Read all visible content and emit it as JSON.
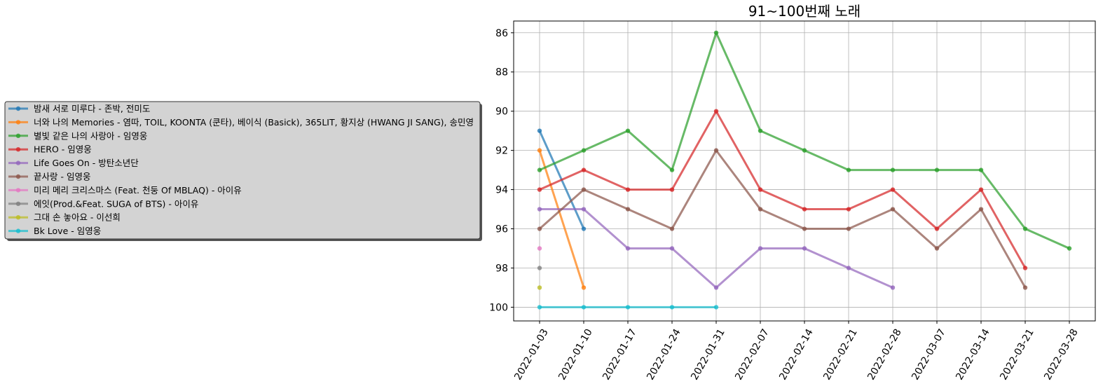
{
  "chart_data": {
    "type": "line",
    "title": "91~100번째 노래",
    "xlabel": "",
    "ylabel": "",
    "x": [
      "2022-01-03",
      "2022-01-10",
      "2022-01-17",
      "2022-01-24",
      "2022-01-31",
      "2022-02-07",
      "2022-02-14",
      "2022-02-21",
      "2022-02-28",
      "2022-03-07",
      "2022-03-14",
      "2022-03-21",
      "2022-03-28"
    ],
    "ylim": [
      100.7,
      85.4
    ],
    "y_inverted": true,
    "yticks": [
      86,
      88,
      90,
      92,
      94,
      96,
      98,
      100
    ],
    "grid": true,
    "legend_position": "left, outside plot",
    "series": [
      {
        "name": "밤새 서로 미루다 - 존박, 전미도",
        "color": "#1f77b4",
        "values": [
          91,
          96,
          null,
          null,
          null,
          null,
          null,
          null,
          null,
          null,
          null,
          null,
          null
        ]
      },
      {
        "name": "너와 나의 Memories - 염따, TOIL, KOONTA (쿤타), 베이식 (Basick), 365LIT, 황지상 (HWANG JI SANG), 송민영",
        "color": "#ff7f0e",
        "values": [
          92,
          99,
          null,
          null,
          null,
          null,
          null,
          null,
          null,
          null,
          null,
          null,
          null
        ]
      },
      {
        "name": "별빛 같은 나의 사랑아 - 임영웅",
        "color": "#2ca02c",
        "values": [
          93,
          92,
          91,
          93,
          86,
          91,
          92,
          93,
          93,
          93,
          93,
          96,
          97
        ]
      },
      {
        "name": "HERO - 임영웅",
        "color": "#d62728",
        "values": [
          94,
          93,
          94,
          94,
          90,
          94,
          95,
          95,
          94,
          96,
          94,
          98,
          null
        ]
      },
      {
        "name": "Life Goes On - 방탄소년단",
        "color": "#9467bd",
        "values": [
          95,
          95,
          97,
          97,
          99,
          97,
          97,
          98,
          99,
          null,
          null,
          null,
          null
        ]
      },
      {
        "name": "끝사랑 - 임영웅",
        "color": "#8c564b",
        "values": [
          96,
          94,
          95,
          96,
          92,
          95,
          96,
          96,
          95,
          97,
          95,
          99,
          null
        ]
      },
      {
        "name": "미리 메리 크리스마스 (Feat. 천둥 Of MBLAQ) - 아이유",
        "color": "#e377c2",
        "values": [
          97,
          null,
          null,
          null,
          null,
          null,
          null,
          null,
          null,
          null,
          null,
          null,
          null
        ]
      },
      {
        "name": "에잇(Prod.&Feat. SUGA of BTS) - 아이유",
        "color": "#7f7f7f",
        "values": [
          98,
          null,
          null,
          null,
          null,
          null,
          null,
          null,
          null,
          null,
          null,
          null,
          null
        ]
      },
      {
        "name": "그대 손 놓아요 - 이선희",
        "color": "#bcbd22",
        "values": [
          99,
          null,
          null,
          null,
          null,
          null,
          null,
          null,
          null,
          null,
          null,
          null,
          null
        ]
      },
      {
        "name": "Bk Love - 임영웅",
        "color": "#17becf",
        "values": [
          100,
          100,
          100,
          100,
          100,
          null,
          null,
          null,
          null,
          null,
          null,
          null,
          null
        ]
      }
    ]
  }
}
